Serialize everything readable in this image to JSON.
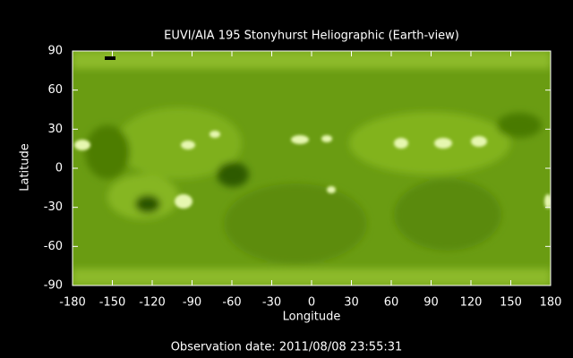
{
  "title": "EUVI/AIA 195 Stonyhurst Heliographic (Earth-view)",
  "x_axis": {
    "label": "Longitude",
    "lim": [
      -180,
      180
    ],
    "ticks": [
      -180,
      -150,
      -120,
      -90,
      -60,
      -30,
      0,
      30,
      60,
      90,
      120,
      150,
      180
    ]
  },
  "y_axis": {
    "label": "Latitude",
    "lim": [
      -90,
      90
    ],
    "ticks": [
      -90,
      -60,
      -30,
      0,
      30,
      60,
      90
    ]
  },
  "footer": "Observation date: 2011/08/08 23:55:31"
}
